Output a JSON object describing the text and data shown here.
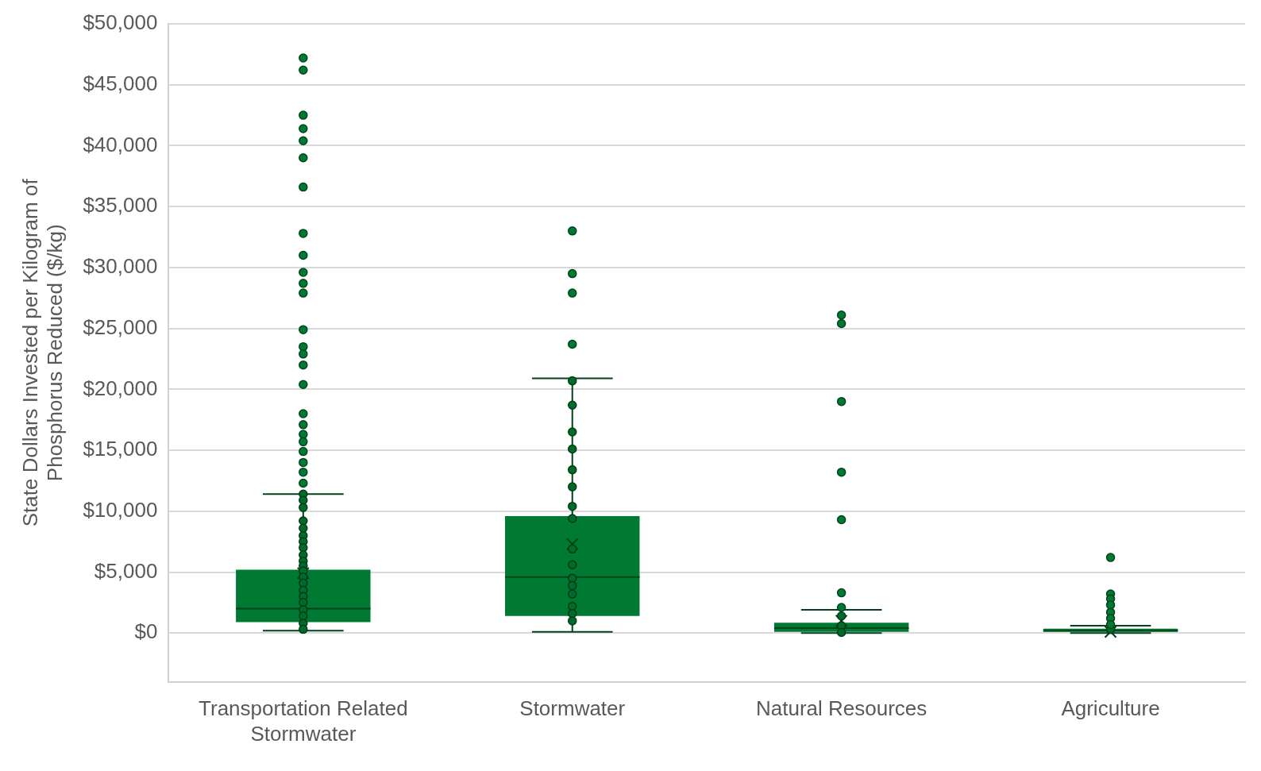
{
  "chart_data": {
    "type": "box",
    "ylabel": "State Dollars Invested per Kilogram of Phosphorus Reduced ($/kg)",
    "categories": [
      "Transportation Related Stormwater",
      "Stormwater",
      "Natural Resources",
      "Agriculture"
    ],
    "ylim": [
      -4000,
      50000
    ],
    "yticks": [
      {
        "value": 0,
        "label": "$0"
      },
      {
        "value": 5000,
        "label": "$5,000"
      },
      {
        "value": 10000,
        "label": "$10,000"
      },
      {
        "value": 15000,
        "label": "$15,000"
      },
      {
        "value": 20000,
        "label": "$20,000"
      },
      {
        "value": 25000,
        "label": "$25,000"
      },
      {
        "value": 30000,
        "label": "$30,000"
      },
      {
        "value": 35000,
        "label": "$35,000"
      },
      {
        "value": 40000,
        "label": "$40,000"
      },
      {
        "value": 45000,
        "label": "$45,000"
      },
      {
        "value": 50000,
        "label": "$50,000"
      }
    ],
    "grid": "y",
    "legend": false,
    "marker": "circle",
    "series": [
      {
        "color": "#007a33",
        "boxes": [
          {
            "low": 200,
            "q1": 900,
            "median": 2000,
            "q3": 5200,
            "high": 11400,
            "mean": 4900,
            "outliers": [
              47200,
              46200,
              42500,
              41400,
              40400,
              39000,
              36600,
              32800,
              31000,
              29600,
              28700,
              27900,
              24900,
              23500,
              22900,
              22000,
              20400,
              18000,
              17100,
              16300,
              15700,
              14900,
              14000,
              13200,
              12300
            ]
          },
          {
            "low": 100,
            "q1": 1400,
            "median": 4600,
            "q3": 9600,
            "high": 20900,
            "mean": 7300,
            "outliers": [
              33000,
              29500,
              27900,
              23700
            ]
          },
          {
            "low": 0,
            "q1": 100,
            "median": 400,
            "q3": 850,
            "high": 1900,
            "mean": 1000,
            "outliers": [
              26100,
              25400,
              19000,
              13200,
              9300,
              3300,
              2100
            ]
          },
          {
            "low": 0,
            "q1": 100,
            "median": 200,
            "q3": 350,
            "high": 600,
            "mean": 100,
            "outliers": [
              6200,
              3200,
              2800,
              2300,
              1700,
              1200,
              700
            ]
          }
        ]
      },
      {
        "type": "scatter",
        "color": "#006b2b",
        "x": [
          "Transportation Related Stormwater",
          "Transportation Related Stormwater",
          "Transportation Related Stormwater",
          "Transportation Related Stormwater",
          "Transportation Related Stormwater",
          "Transportation Related Stormwater",
          "Transportation Related Stormwater",
          "Transportation Related Stormwater",
          "Transportation Related Stormwater",
          "Transportation Related Stormwater",
          "Transportation Related Stormwater",
          "Transportation Related Stormwater",
          "Transportation Related Stormwater",
          "Transportation Related Stormwater",
          "Transportation Related Stormwater",
          "Transportation Related Stormwater",
          "Transportation Related Stormwater",
          "Transportation Related Stormwater",
          "Transportation Related Stormwater",
          "Transportation Related Stormwater",
          "Transportation Related Stormwater",
          "Stormwater",
          "Stormwater",
          "Stormwater",
          "Stormwater",
          "Stormwater",
          "Stormwater",
          "Stormwater",
          "Stormwater",
          "Stormwater",
          "Stormwater",
          "Stormwater",
          "Stormwater",
          "Stormwater",
          "Stormwater",
          "Stormwater",
          "Stormwater",
          "Natural Resources",
          "Natural Resources",
          "Natural Resources",
          "Agriculture"
        ],
        "values": [
          11400,
          10900,
          10300,
          9200,
          8600,
          8000,
          7500,
          7000,
          6400,
          5900,
          5500,
          5100,
          4600,
          4100,
          3500,
          3000,
          2500,
          1900,
          1400,
          800,
          300,
          20700,
          18700,
          16500,
          15100,
          13400,
          12000,
          10400,
          9400,
          6900,
          5600,
          4500,
          3900,
          3200,
          2200,
          1600,
          1000,
          1400,
          600,
          50,
          300
        ]
      }
    ]
  }
}
